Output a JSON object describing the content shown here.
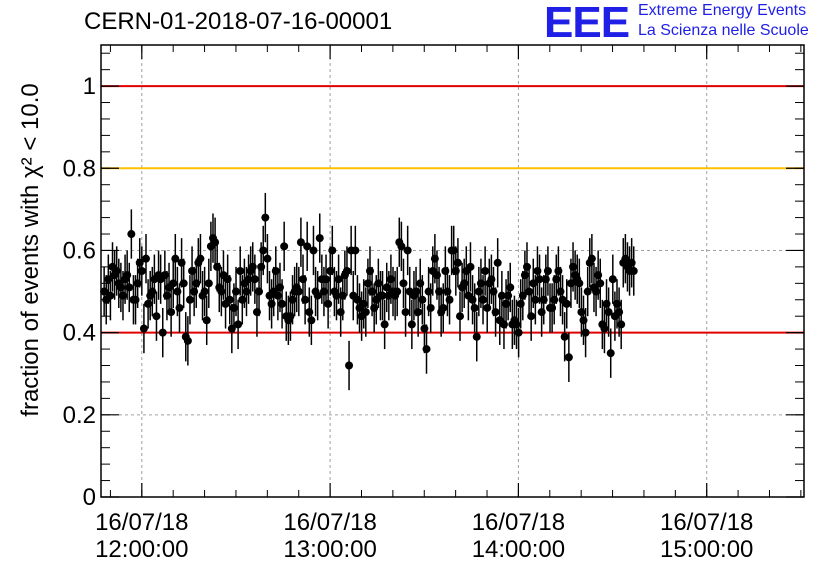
{
  "header": {
    "title": "CERN-01-2018-07-16-00001",
    "logo_mark": "EEE",
    "logo_line1": "Extreme Energy Events",
    "logo_line2": "La Scienza nelle Scuole"
  },
  "colors": {
    "upper_limit_line": "#e00000",
    "warning_line": "#ffc000",
    "lower_limit_line": "#e00000",
    "logo": "#1f1fe6",
    "markers": "#000000",
    "grid": "#a0a0a0"
  },
  "chart_data": {
    "type": "scatter",
    "title": "CERN-01-2018-07-16-00001",
    "ylabel": "fraction of events with χ² < 10.0",
    "xlabel": "",
    "x_range": [
      "2018-07-16 11:47:00",
      "2018-07-16 15:31:00"
    ],
    "ylim": [
      0,
      1.1
    ],
    "grid": true,
    "x_ticks": [
      {
        "time": "2018-07-16 12:00:00",
        "date": "16/07/18",
        "clock": "12:00:00"
      },
      {
        "time": "2018-07-16 13:00:00",
        "date": "16/07/18",
        "clock": "13:00:00"
      },
      {
        "time": "2018-07-16 14:00:00",
        "date": "16/07/18",
        "clock": "14:00:00"
      },
      {
        "time": "2018-07-16 15:00:00",
        "date": "16/07/18",
        "clock": "15:00:00"
      }
    ],
    "y_ticks": [
      "0",
      "0.2",
      "0.4",
      "0.6",
      "0.8",
      "1"
    ],
    "y_tick_values": [
      0,
      0.2,
      0.4,
      0.6,
      0.8,
      1.0
    ],
    "reference_lines": [
      {
        "y": 1.0,
        "color": "#e00000"
      },
      {
        "y": 0.8,
        "color": "#ffc000"
      },
      {
        "y": 0.4,
        "color": "#e00000"
      }
    ],
    "error_bar": 0.06,
    "series": [
      {
        "start": "2018-07-16 11:48:00",
        "interval_minutes": 0.667,
        "values": [
          0.5,
          0.48,
          0.53,
          0.49,
          0.56,
          0.54,
          0.55,
          0.52,
          0.51,
          0.49,
          0.53,
          0.54,
          0.51,
          0.64,
          0.48,
          0.48,
          0.52,
          0.57,
          0.55,
          0.41,
          0.58,
          0.47,
          0.49,
          0.5,
          0.53,
          0.44,
          0.54,
          0.53,
          0.4,
          0.54,
          0.49,
          0.51,
          0.45,
          0.52,
          0.58,
          0.5,
          0.46,
          0.57,
          0.52,
          0.39,
          0.38,
          0.48,
          0.55,
          0.5,
          0.52,
          0.57,
          0.58,
          0.49,
          0.5,
          0.43,
          0.52,
          0.61,
          0.63,
          0.62,
          0.56,
          0.51,
          0.5,
          0.54,
          0.47,
          0.53,
          0.48,
          0.41,
          0.46,
          0.5,
          0.42,
          0.55,
          0.48,
          0.52,
          0.5,
          0.53,
          0.55,
          0.56,
          0.53,
          0.45,
          0.5,
          0.56,
          0.6,
          0.68,
          0.58,
          0.49,
          0.47,
          0.5,
          0.55,
          0.49,
          0.51,
          0.47,
          0.61,
          0.44,
          0.43,
          0.44,
          0.48,
          0.5,
          0.51,
          0.5,
          0.62,
          0.53,
          0.48,
          0.61,
          0.45,
          0.43,
          0.6,
          0.5,
          0.49,
          0.63,
          0.53,
          0.5,
          0.53,
          0.47,
          0.55,
          0.6,
          0.5,
          0.49,
          0.53,
          0.45,
          0.49,
          0.54,
          0.55,
          0.32,
          0.6,
          0.49,
          0.6,
          0.48,
          0.46,
          0.44,
          0.47,
          0.45,
          0.52,
          0.55,
          0.5,
          0.46,
          0.48,
          0.52,
          0.49,
          0.49,
          0.42,
          0.51,
          0.49,
          0.53,
          0.5,
          0.49,
          0.5,
          0.62,
          0.61,
          0.52,
          0.45,
          0.6,
          0.5,
          0.42,
          0.49,
          0.5,
          0.45,
          0.52,
          0.48,
          0.41,
          0.36,
          0.5,
          0.46,
          0.55,
          0.58,
          0.54,
          0.5,
          0.45,
          0.46,
          0.55,
          0.5,
          0.48,
          0.6,
          0.6,
          0.55,
          0.57,
          0.44,
          0.51,
          0.52,
          0.55,
          0.49,
          0.56,
          0.48,
          0.46,
          0.39,
          0.5,
          0.52,
          0.48,
          0.55,
          0.46,
          0.52,
          0.53,
          0.5,
          0.45,
          0.57,
          0.43,
          0.49,
          0.42,
          0.47,
          0.49,
          0.51,
          0.42,
          0.43,
          0.42,
          0.4,
          0.47,
          0.49,
          0.54,
          0.56,
          0.5,
          0.44,
          0.52,
          0.48,
          0.55,
          0.53,
          0.45,
          0.48,
          0.53,
          0.55,
          0.46,
          0.46,
          0.48,
          0.53,
          0.55,
          0.5,
          0.48,
          0.39,
          0.47,
          0.34,
          0.52,
          0.56,
          0.54,
          0.53,
          0.52,
          0.45,
          0.43,
          0.4,
          0.5,
          0.57,
          0.58,
          0.51,
          0.5,
          0.54,
          0.52,
          0.42,
          0.41,
          0.47,
          0.45,
          0.35,
          0.53,
          0.44,
          0.47,
          0.45,
          0.42,
          0.57,
          0.58,
          0.56,
          0.55,
          0.57,
          0.55
        ]
      }
    ]
  }
}
